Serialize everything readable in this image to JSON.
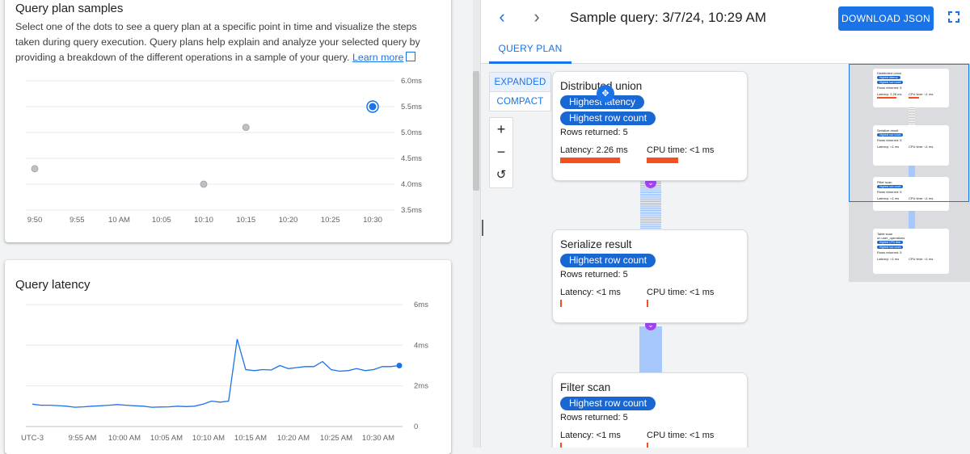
{
  "samples_card": {
    "title": "Query plan samples",
    "description": "Select one of the dots to see a query plan at a specific point in time and visualize the steps taken during query execution. Query plans help explain and analyze your selected query by providing a breakdown of the different operations in a sample of your query.",
    "link_label": "Learn more"
  },
  "latency_card": {
    "title": "Query latency"
  },
  "chart_data": [
    {
      "type": "scatter",
      "title": "",
      "x_ticks": [
        "9:50",
        "9:55",
        "10 AM",
        "10:05",
        "10:10",
        "10:15",
        "10:20",
        "10:25",
        "10:30"
      ],
      "y_ticks": [
        "6.0ms",
        "5.5ms",
        "5.0ms",
        "4.5ms",
        "4.0ms",
        "3.5ms"
      ],
      "ylim": [
        3.5,
        6.0
      ],
      "points": [
        {
          "x": "9:50",
          "y": 4.3,
          "selected": false
        },
        {
          "x": "10:10",
          "y": 4.0,
          "selected": false
        },
        {
          "x": "10:15",
          "y": 5.1,
          "selected": false
        },
        {
          "x": "10:30",
          "y": 5.5,
          "selected": true
        }
      ],
      "grid": true
    },
    {
      "type": "line",
      "title": "",
      "x_ticks": [
        "UTC-3",
        "9:55 AM",
        "10:00 AM",
        "10:05 AM",
        "10:10 AM",
        "10:15 AM",
        "10:20 AM",
        "10:25 AM",
        "10:30 AM"
      ],
      "y_ticks": [
        "6ms",
        "4ms",
        "2ms",
        "0"
      ],
      "ylim": [
        0,
        6
      ],
      "x": [
        "9:50",
        "9:51",
        "9:52",
        "9:53",
        "9:54",
        "9:55",
        "9:56",
        "9:57",
        "9:58",
        "9:59",
        "10:00",
        "10:01",
        "10:02",
        "10:03",
        "10:04",
        "10:05",
        "10:06",
        "10:07",
        "10:08",
        "10:09",
        "10:10",
        "10:11",
        "10:12",
        "10:13",
        "10:14",
        "10:15",
        "10:16",
        "10:17",
        "10:18",
        "10:19",
        "10:20",
        "10:21",
        "10:22",
        "10:23",
        "10:24",
        "10:25",
        "10:26",
        "10:27",
        "10:28",
        "10:29",
        "10:30",
        "10:31",
        "10:32",
        "10:33"
      ],
      "values": [
        1.1,
        1.05,
        1.05,
        1.03,
        1.0,
        0.95,
        0.97,
        1.0,
        1.02,
        1.05,
        1.08,
        1.05,
        1.02,
        1.0,
        0.95,
        0.96,
        0.97,
        1.0,
        0.98,
        1.0,
        1.1,
        1.25,
        1.2,
        1.25,
        4.3,
        2.8,
        2.75,
        2.8,
        2.78,
        3.0,
        2.85,
        2.9,
        2.95,
        2.95,
        3.2,
        2.8,
        2.72,
        2.75,
        2.85,
        2.75,
        2.8,
        2.95,
        2.95,
        3.0
      ],
      "grid": true
    }
  ],
  "plan_panel": {
    "title": "Sample query: 3/7/24, 10:29 AM",
    "download_label": "DOWNLOAD JSON",
    "tab_label": "QUERY PLAN",
    "mode_expanded": "EXPANDED",
    "mode_compact": "COMPACT",
    "zoom_in": "+",
    "zoom_out": "−",
    "reset": "↺",
    "nodes": [
      {
        "title": "Distributed union",
        "chips": [
          "Highest latency",
          "Highest row count"
        ],
        "rows": "Rows returned: 5",
        "latency": "Latency: 2.26 ms",
        "cpu": "CPU time: <1 ms"
      },
      {
        "title": "Serialize result",
        "chips": [
          "Highest row count"
        ],
        "rows": "Rows returned: 5",
        "latency": "Latency: <1 ms",
        "cpu": "CPU time: <1 ms"
      },
      {
        "title": "Filter scan",
        "chips": [
          "Highest row count"
        ],
        "rows": "Rows returned: 5",
        "latency": "Latency: <1 ms",
        "cpu": "CPU time: <1 ms"
      }
    ],
    "minimap": {
      "nodes": [
        {
          "title": "Distributed union",
          "chips": [
            "Highest latency",
            "Highest row count"
          ],
          "rows": "Rows returned: 5",
          "latency": "Latency: 2.26 ms",
          "cpu": "CPU time: <1 ms"
        },
        {
          "title": "Serialize result",
          "chips": [
            "Highest row count"
          ],
          "rows": "Rows returned: 5",
          "latency": "Latency: <1 ms",
          "cpu": "CPU time: <1 ms"
        },
        {
          "title": "Filter scan",
          "chips": [
            "Highest row count"
          ],
          "rows": "Rows returned: 5",
          "latency": "Latency: <1 ms",
          "cpu": "CPU time: <1 ms"
        },
        {
          "title": "Table scan",
          "subtitle": "on user_operations",
          "chips": [
            "Highest CPU time",
            "Highest row count"
          ],
          "rows": "Rows returned: 5",
          "latency": "Latency: <1 ms",
          "cpu": "CPU time: <1 ms"
        }
      ]
    }
  }
}
